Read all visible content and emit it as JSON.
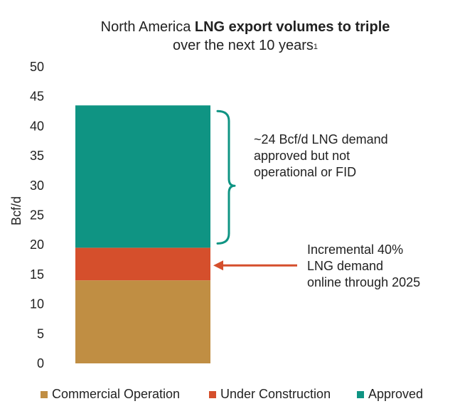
{
  "title": {
    "line1_prefix": "North America ",
    "line1_bold": "LNG export volumes to triple",
    "line2": "over the next 10 years",
    "footnote_marker": "1"
  },
  "chart_data": {
    "type": "bar",
    "stacked": true,
    "categories": [
      ""
    ],
    "ylabel": "Bcf/d",
    "ylim": [
      0,
      50
    ],
    "yticks": [
      0,
      5,
      10,
      15,
      20,
      25,
      30,
      35,
      40,
      45,
      50
    ],
    "grid": false,
    "series": [
      {
        "name": "Commercial Operation",
        "values": [
          14
        ],
        "color": "#c08e43"
      },
      {
        "name": "Under Construction",
        "values": [
          5.5
        ],
        "color": "#d54f2c"
      },
      {
        "name": "Approved",
        "values": [
          24
        ],
        "color": "#0f9483"
      }
    ],
    "annotations": [
      {
        "lines": [
          "~24 Bcf/d LNG demand",
          "approved but not",
          "operational or FID"
        ],
        "color": "#0f9483",
        "marker": "bracket"
      },
      {
        "lines": [
          "Incremental 40%",
          "LNG demand",
          "online through 2025"
        ],
        "color": "#d54f2c",
        "marker": "arrow"
      }
    ],
    "legend_position": "bottom"
  }
}
